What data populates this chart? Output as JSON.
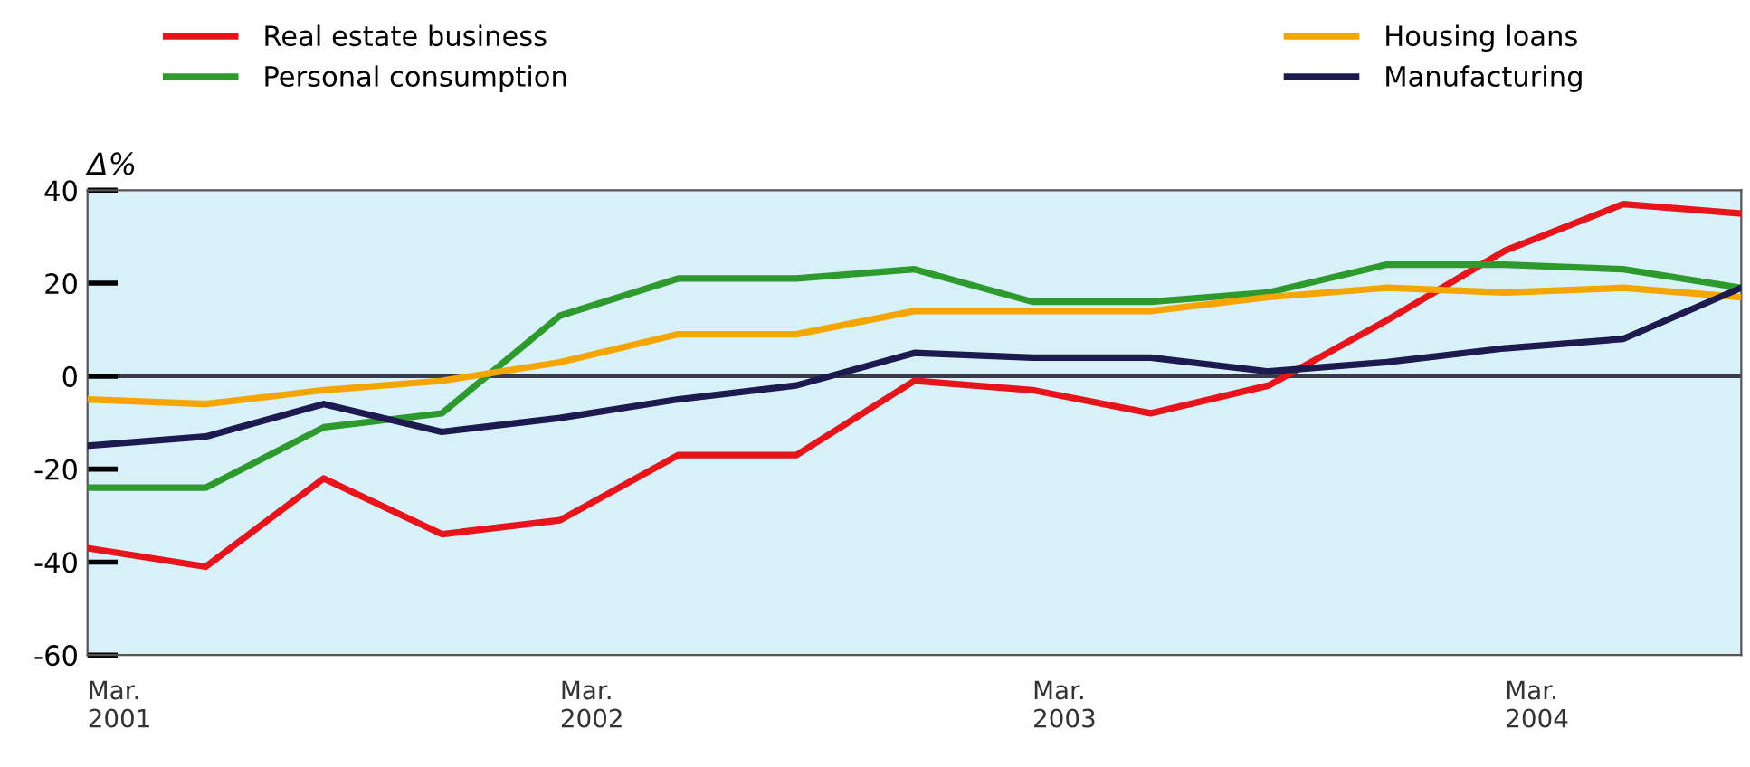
{
  "chart_data": {
    "type": "line",
    "ylabel": "Δ%",
    "categories": [
      "Mar.\n2001",
      null,
      null,
      null,
      "Mar.\n2002",
      null,
      null,
      null,
      "Mar.\n2003",
      null,
      null,
      null,
      "Mar.\n2004",
      null,
      null
    ],
    "series": [
      {
        "name": "Real estate business",
        "color": "#e8141c",
        "values": [
          -37,
          -41,
          -22,
          -34,
          -31,
          -17,
          -17,
          -1,
          -3,
          -8,
          -2,
          12,
          27,
          37,
          35
        ]
      },
      {
        "name": "Personal consumption",
        "color": "#2e9a2e",
        "values": [
          -24,
          -24,
          -11,
          -8,
          13,
          21,
          21,
          23,
          16,
          16,
          18,
          24,
          24,
          23,
          19
        ]
      },
      {
        "name": "Housing loans",
        "color": "#f5a500",
        "values": [
          -5,
          -6,
          -3,
          -1,
          3,
          9,
          9,
          14,
          14,
          14,
          17,
          19,
          18,
          19,
          17
        ]
      },
      {
        "name": "Manufacturing",
        "color": "#1c1a4e",
        "values": [
          -15,
          -13,
          -6,
          -12,
          -9,
          -5,
          -2,
          5,
          4,
          4,
          1,
          3,
          6,
          8,
          19
        ]
      }
    ],
    "ylim": [
      -60,
      40
    ],
    "yticks": [
      -60,
      -40,
      -20,
      0,
      20,
      40
    ],
    "ref_lines": [
      {
        "axis": "y",
        "value": 0,
        "color": "#3a3a4a"
      }
    ],
    "grid": false,
    "legend": "top",
    "marker": "none",
    "line_style": "solid"
  }
}
